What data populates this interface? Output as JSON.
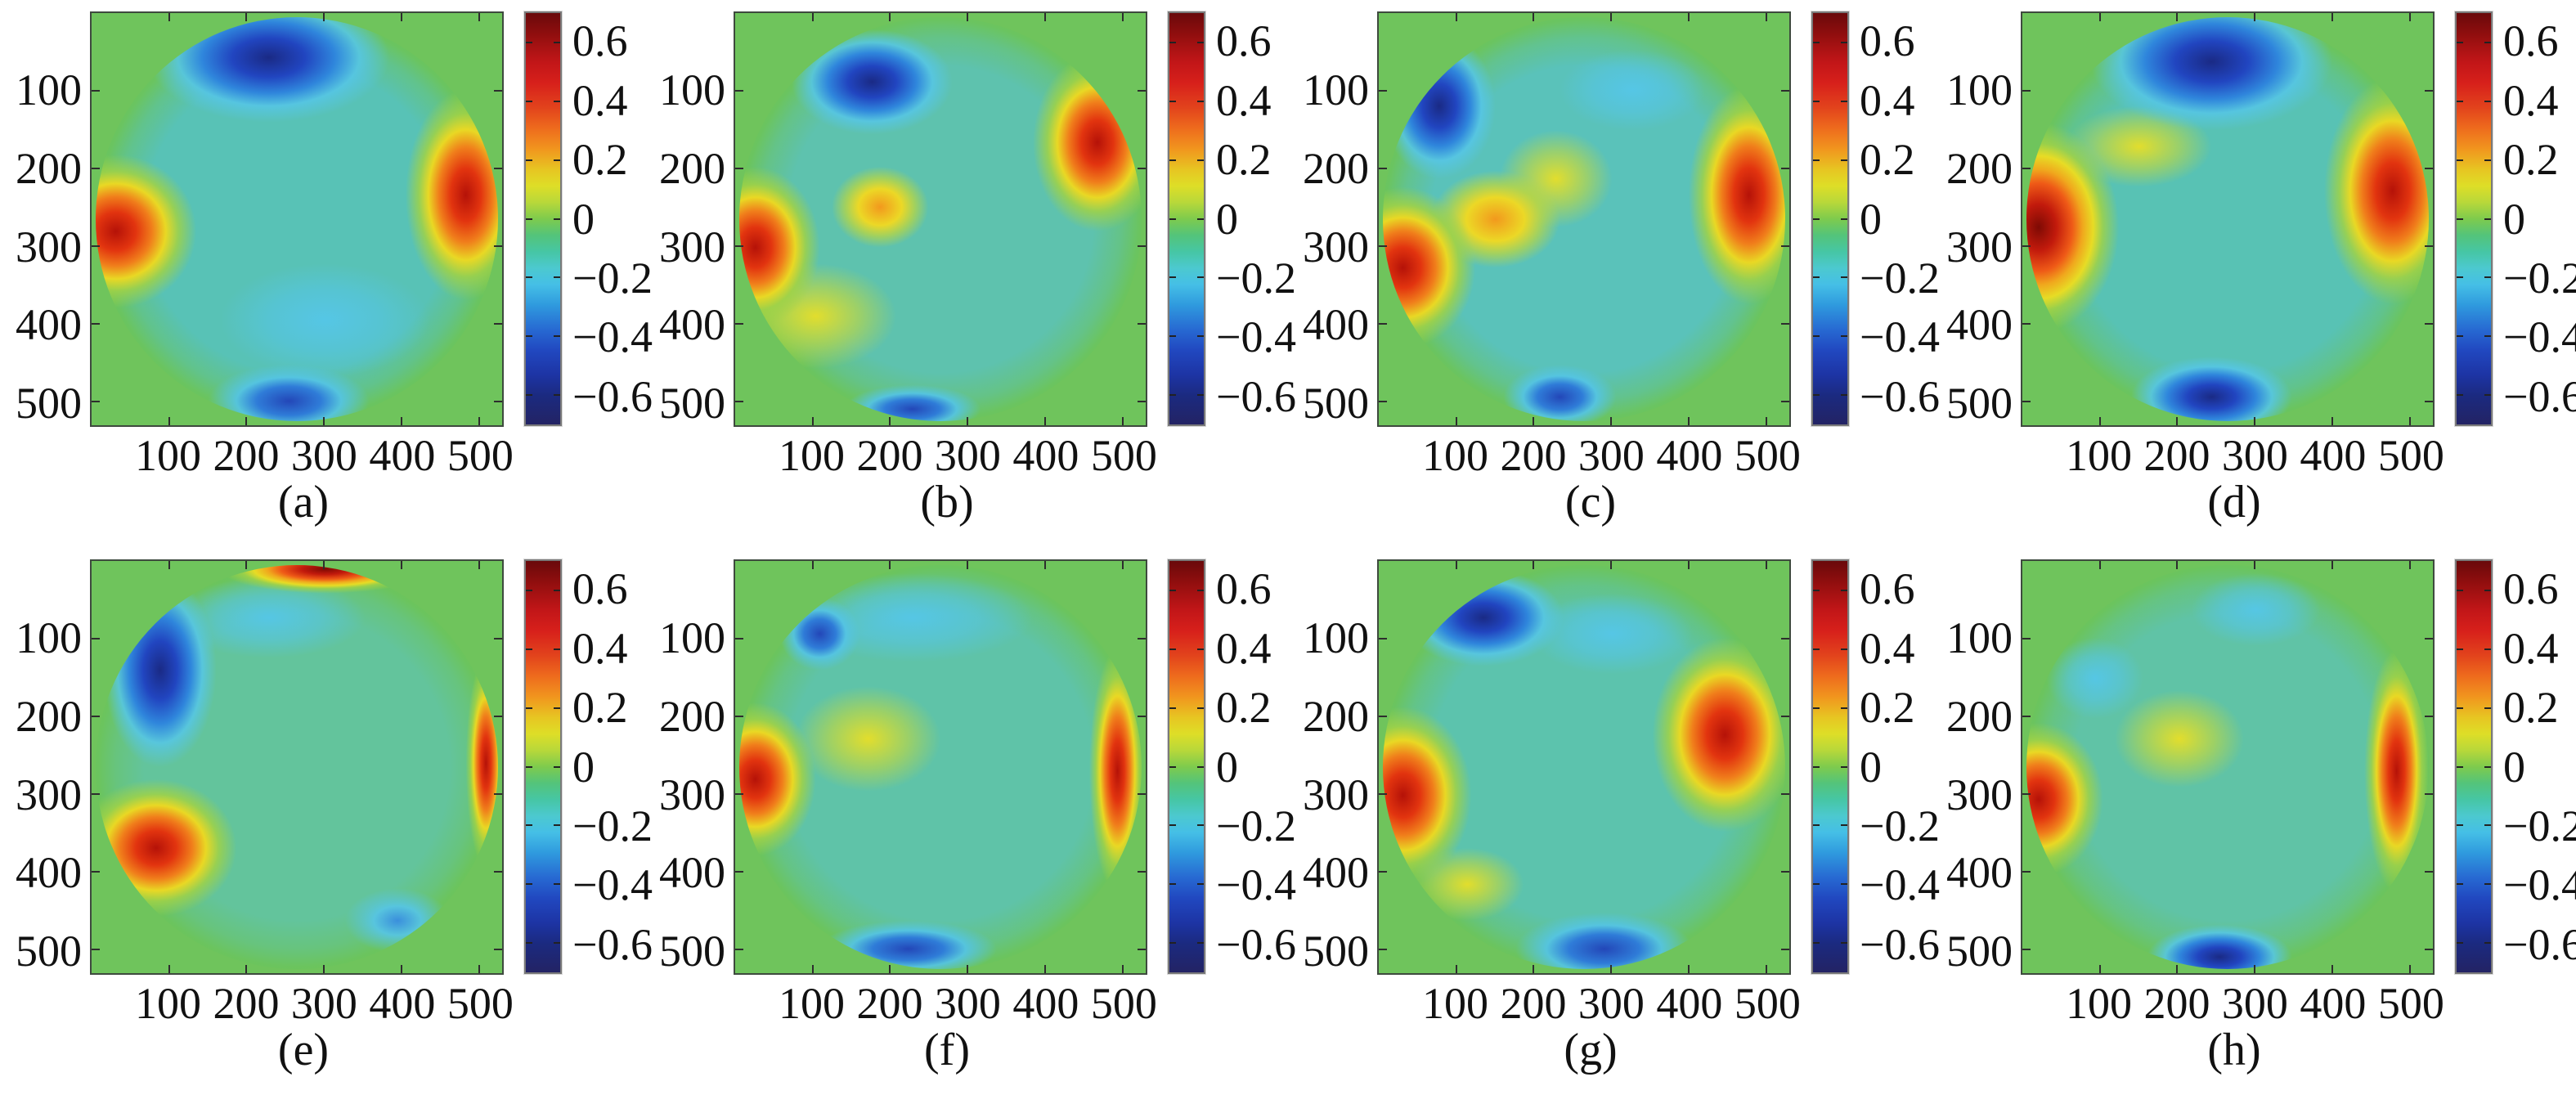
{
  "chart_data": {
    "type": "heatmap",
    "title": "",
    "layout": {
      "rows": 2,
      "cols": 4,
      "legend_position": "right-colorbar-per-panel",
      "grid": false
    },
    "colormap": "jet",
    "axis_max": 530,
    "value_max": 0.7,
    "x_tick_labels": [
      "100",
      "200",
      "300",
      "400",
      "500"
    ],
    "y_tick_labels": [
      "100",
      "200",
      "300",
      "400",
      "500"
    ],
    "axis_tick_values": [
      100,
      200,
      300,
      400,
      500
    ],
    "colorbar_tick_labels": [
      "0.6",
      "0.4",
      "0.2",
      "0",
      "−0.2",
      "−0.4",
      "−0.6"
    ],
    "colorbar_tick_values": [
      0.6,
      0.4,
      0.2,
      0,
      -0.2,
      -0.4,
      -0.6
    ],
    "value_range": [
      -0.7,
      0.7
    ],
    "panels": [
      {
        "label": "(a)",
        "summary": "negative lobe top-center (~-0.45), negative lobe bottom-center (~-0.4), positive lobes (~0.55) at left-middle and right-middle edges, cyan center (~-0.15)",
        "base_color": "#58c2b6",
        "features": [
          {
            "x": 43,
            "y": 10,
            "rx": 30,
            "ry": 16,
            "kind": "neg_dark"
          },
          {
            "x": 48,
            "y": 95,
            "rx": 20,
            "ry": 9,
            "kind": "neg_strong"
          },
          {
            "x": 5,
            "y": 53,
            "rx": 20,
            "ry": 19,
            "kind": "pos_strong"
          },
          {
            "x": 92,
            "y": 44,
            "rx": 15,
            "ry": 26,
            "kind": "pos_strong"
          },
          {
            "x": 57,
            "y": 75,
            "rx": 26,
            "ry": 14,
            "kind": "cyan"
          }
        ]
      },
      {
        "label": "(b)",
        "summary": "strong negative lobe upper-left (~-0.55), positive arc upper-right (~0.55), positive lobe left (~0.55), orange bump left-center (~0.3), thin negative sliver at bottom",
        "base_color": "#5ec2ae",
        "features": [
          {
            "x": 33,
            "y": 16,
            "rx": 20,
            "ry": 13,
            "kind": "neg_dark"
          },
          {
            "x": 89,
            "y": 31,
            "rx": 16,
            "ry": 22,
            "kind": "pos_strong"
          },
          {
            "x": 4,
            "y": 57,
            "rx": 16,
            "ry": 20,
            "kind": "pos_strong"
          },
          {
            "x": 35,
            "y": 47,
            "rx": 12,
            "ry": 10,
            "kind": "orange"
          },
          {
            "x": 19,
            "y": 74,
            "rx": 20,
            "ry": 13,
            "kind": "yellow"
          },
          {
            "x": 43,
            "y": 97,
            "rx": 17,
            "ry": 6,
            "kind": "neg_strong"
          }
        ]
      },
      {
        "label": "(c)",
        "summary": "dark negative wedge on upper-left rim (~-0.6), broad positive region right (~0.55), positive lobe lower-left (~0.55), yellow-orange S ridge through left-center, small negative patch bottom",
        "base_color": "#5ac2ba",
        "features": [
          {
            "x": 14,
            "y": 22,
            "rx": 14,
            "ry": 18,
            "kind": "neg_dark"
          },
          {
            "x": 91,
            "y": 44,
            "rx": 15,
            "ry": 27,
            "kind": "pos_strong"
          },
          {
            "x": 5,
            "y": 62,
            "rx": 18,
            "ry": 20,
            "kind": "pos_strong"
          },
          {
            "x": 28,
            "y": 50,
            "rx": 16,
            "ry": 12,
            "kind": "orange"
          },
          {
            "x": 43,
            "y": 40,
            "rx": 14,
            "ry": 12,
            "kind": "yellow"
          },
          {
            "x": 44,
            "y": 94,
            "rx": 14,
            "ry": 8,
            "kind": "neg_strong"
          },
          {
            "x": 62,
            "y": 18,
            "rx": 18,
            "ry": 10,
            "kind": "cyan"
          }
        ]
      },
      {
        "label": "(d)",
        "summary": "large dark negative cap at top (~-0.6), very dark red positive lobe at left edge (~0.7), broad positive arc right (~0.55), dark negative lobe at bottom (~-0.55)",
        "base_color": "#58c2b4",
        "features": [
          {
            "x": 46,
            "y": 11,
            "rx": 30,
            "ry": 17,
            "kind": "neg_dark"
          },
          {
            "x": 3,
            "y": 52,
            "rx": 20,
            "ry": 26,
            "kind": "pos_dark"
          },
          {
            "x": 91,
            "y": 43,
            "rx": 17,
            "ry": 28,
            "kind": "pos_strong"
          },
          {
            "x": 46,
            "y": 94,
            "rx": 20,
            "ry": 10,
            "kind": "neg_dark"
          },
          {
            "x": 28,
            "y": 32,
            "rx": 18,
            "ry": 10,
            "kind": "yellow"
          }
        ]
      },
      {
        "label": "(e)",
        "summary": "dark red thin arc on top rim (~0.65), elongated negative band upper-left (~-0.5), strong positive lobe lower-left (~0.6), thin positive arc on right rim, faint negative patch bottom-right, greenish interior",
        "base_color": "#63c49c",
        "features": [
          {
            "x": 57,
            "y": 1,
            "rx": 26,
            "ry": 6,
            "kind": "pos_dark"
          },
          {
            "x": 16,
            "y": 26,
            "rx": 14,
            "ry": 24,
            "kind": "neg_dark"
          },
          {
            "x": 15,
            "y": 70,
            "rx": 20,
            "ry": 17,
            "kind": "pos_strong"
          },
          {
            "x": 97,
            "y": 49,
            "rx": 5,
            "ry": 26,
            "kind": "pos_strong"
          },
          {
            "x": 75,
            "y": 88,
            "rx": 13,
            "ry": 8,
            "kind": "neg"
          },
          {
            "x": 43,
            "y": 13,
            "rx": 24,
            "ry": 10,
            "kind": "cyan"
          }
        ]
      },
      {
        "label": "(f)",
        "summary": "mild negative patch upper-left, cyan band along top, positive lobe left (~0.55), yellow plateau left-center, tall thin positive arc on right rim (~0.6), cyan-blue band at bottom",
        "base_color": "#5fc3a8",
        "features": [
          {
            "x": 20,
            "y": 17,
            "rx": 10,
            "ry": 9,
            "kind": "neg_strong"
          },
          {
            "x": 43,
            "y": 13,
            "rx": 30,
            "ry": 11,
            "kind": "cyan"
          },
          {
            "x": 4,
            "y": 53,
            "rx": 15,
            "ry": 19,
            "kind": "pos_strong"
          },
          {
            "x": 32,
            "y": 43,
            "rx": 18,
            "ry": 13,
            "kind": "yellow"
          },
          {
            "x": 94,
            "y": 51,
            "rx": 7,
            "ry": 30,
            "kind": "pos_strong"
          },
          {
            "x": 42,
            "y": 95,
            "rx": 22,
            "ry": 7,
            "kind": "neg_strong"
          }
        ]
      },
      {
        "label": "(g)",
        "summary": "dark negative diagonal band upper-left (~-0.55), broad positive lobe right (~0.6), positive lobe left (~0.6), wide negative lobe at bottom (~-0.45), yellow ridge lower-left",
        "base_color": "#5cc3ad",
        "features": [
          {
            "x": 25,
            "y": 13,
            "rx": 20,
            "ry": 12,
            "kind": "neg_dark"
          },
          {
            "x": 57,
            "y": 17,
            "rx": 20,
            "ry": 10,
            "kind": "cyan"
          },
          {
            "x": 85,
            "y": 42,
            "rx": 18,
            "ry": 24,
            "kind": "pos_strong"
          },
          {
            "x": 5,
            "y": 57,
            "rx": 17,
            "ry": 22,
            "kind": "pos_strong"
          },
          {
            "x": 55,
            "y": 95,
            "rx": 22,
            "ry": 9,
            "kind": "neg_strong"
          },
          {
            "x": 21,
            "y": 79,
            "rx": 14,
            "ry": 9,
            "kind": "yellow"
          }
        ]
      },
      {
        "label": "(h)",
        "summary": "mild cyan patches top-center and upper-left, strong positive lobe at left edge (~0.6), positive arc on right rim (~0.55), yellow diagonal ridge center-left, dark negative lobe at bottom (~-0.5)",
        "base_color": "#60c3a6",
        "features": [
          {
            "x": 57,
            "y": 11,
            "rx": 16,
            "ry": 9,
            "kind": "cyan"
          },
          {
            "x": 17,
            "y": 28,
            "rx": 12,
            "ry": 10,
            "kind": "cyan"
          },
          {
            "x": 3,
            "y": 58,
            "rx": 16,
            "ry": 19,
            "kind": "pos_strong"
          },
          {
            "x": 92,
            "y": 51,
            "rx": 8,
            "ry": 30,
            "kind": "pos_strong"
          },
          {
            "x": 38,
            "y": 43,
            "rx": 16,
            "ry": 12,
            "kind": "yellow"
          },
          {
            "x": 48,
            "y": 97,
            "rx": 18,
            "ry": 8,
            "kind": "neg_dark"
          }
        ]
      }
    ]
  },
  "colors": {
    "background_green": "#6fc45c",
    "rim": "rgba(108,196,88,0.92)",
    "rim_soft": "rgba(108,196,88,0.45)",
    "axis_border": "#3e4a3e",
    "colorbar_border": "#7a7a7a",
    "text": "#111111",
    "colorbar_gradient": "#69090b 0%, #8f0e0e 5%, #c21618 12%, #d7201b 17%, #e2431c 23%, #ee6b1d 28%, #f1951e 33%, #e7c522 38%, #dede27 42%, #b8d83a 46%, #7ecb4d 50%, #54c47a 54%, #46c6a4 58%, #4cc9cf 62%, #45bfe6 66%, #2f9ade 71%, #2769d2 77%, #2148c0 82%, #1d34a4 88%, #1b2a80 93%, #232364 100%",
    "blob_stops": {
      "pos_dark": "#7e0a04 0%, #c21a0c 22%, #ef5a17 42%, #f0a81d 55%, #e7dc25 68%, rgba(160,210,70,0.85) 80%, rgba(160,210,70,0) 100%",
      "pos_strong": "#b51208 0%, #e2340f 25%, #f07e1b 45%, #e9d824 62%, rgba(160,210,70,0.85) 78%, rgba(160,210,70,0) 100%",
      "pos": "#ee5515 0%, #f2a01d 35%, #e8da24 58%, rgba(165,212,72,0.8) 78%, rgba(165,212,72,0) 100%",
      "orange": "#f2991d 0%, #ecd826 45%, rgba(190,215,60,0.7) 72%, rgba(190,215,60,0) 100%",
      "yellow": "rgba(233,223,38,0.95) 0%, rgba(196,217,60,0.6) 55%, rgba(196,217,60,0) 100%",
      "neg_dark": "#1a2a85 0%, #2145c0 30%, #2f86dc 55%, rgba(86,198,231,0.85) 75%, rgba(86,198,231,0) 100%",
      "neg_strong": "#2347b8 0%, #2f7cd8 40%, rgba(84,196,230,0.9) 65%, rgba(84,196,230,0) 100%",
      "neg": "#3a8fdc 0%, rgba(86,197,231,0.9) 45%, rgba(86,197,231,0) 100%",
      "cyan": "rgba(85,198,232,0.95) 0%, rgba(85,198,232,0.55) 55%, rgba(85,198,232,0) 100%"
    }
  }
}
